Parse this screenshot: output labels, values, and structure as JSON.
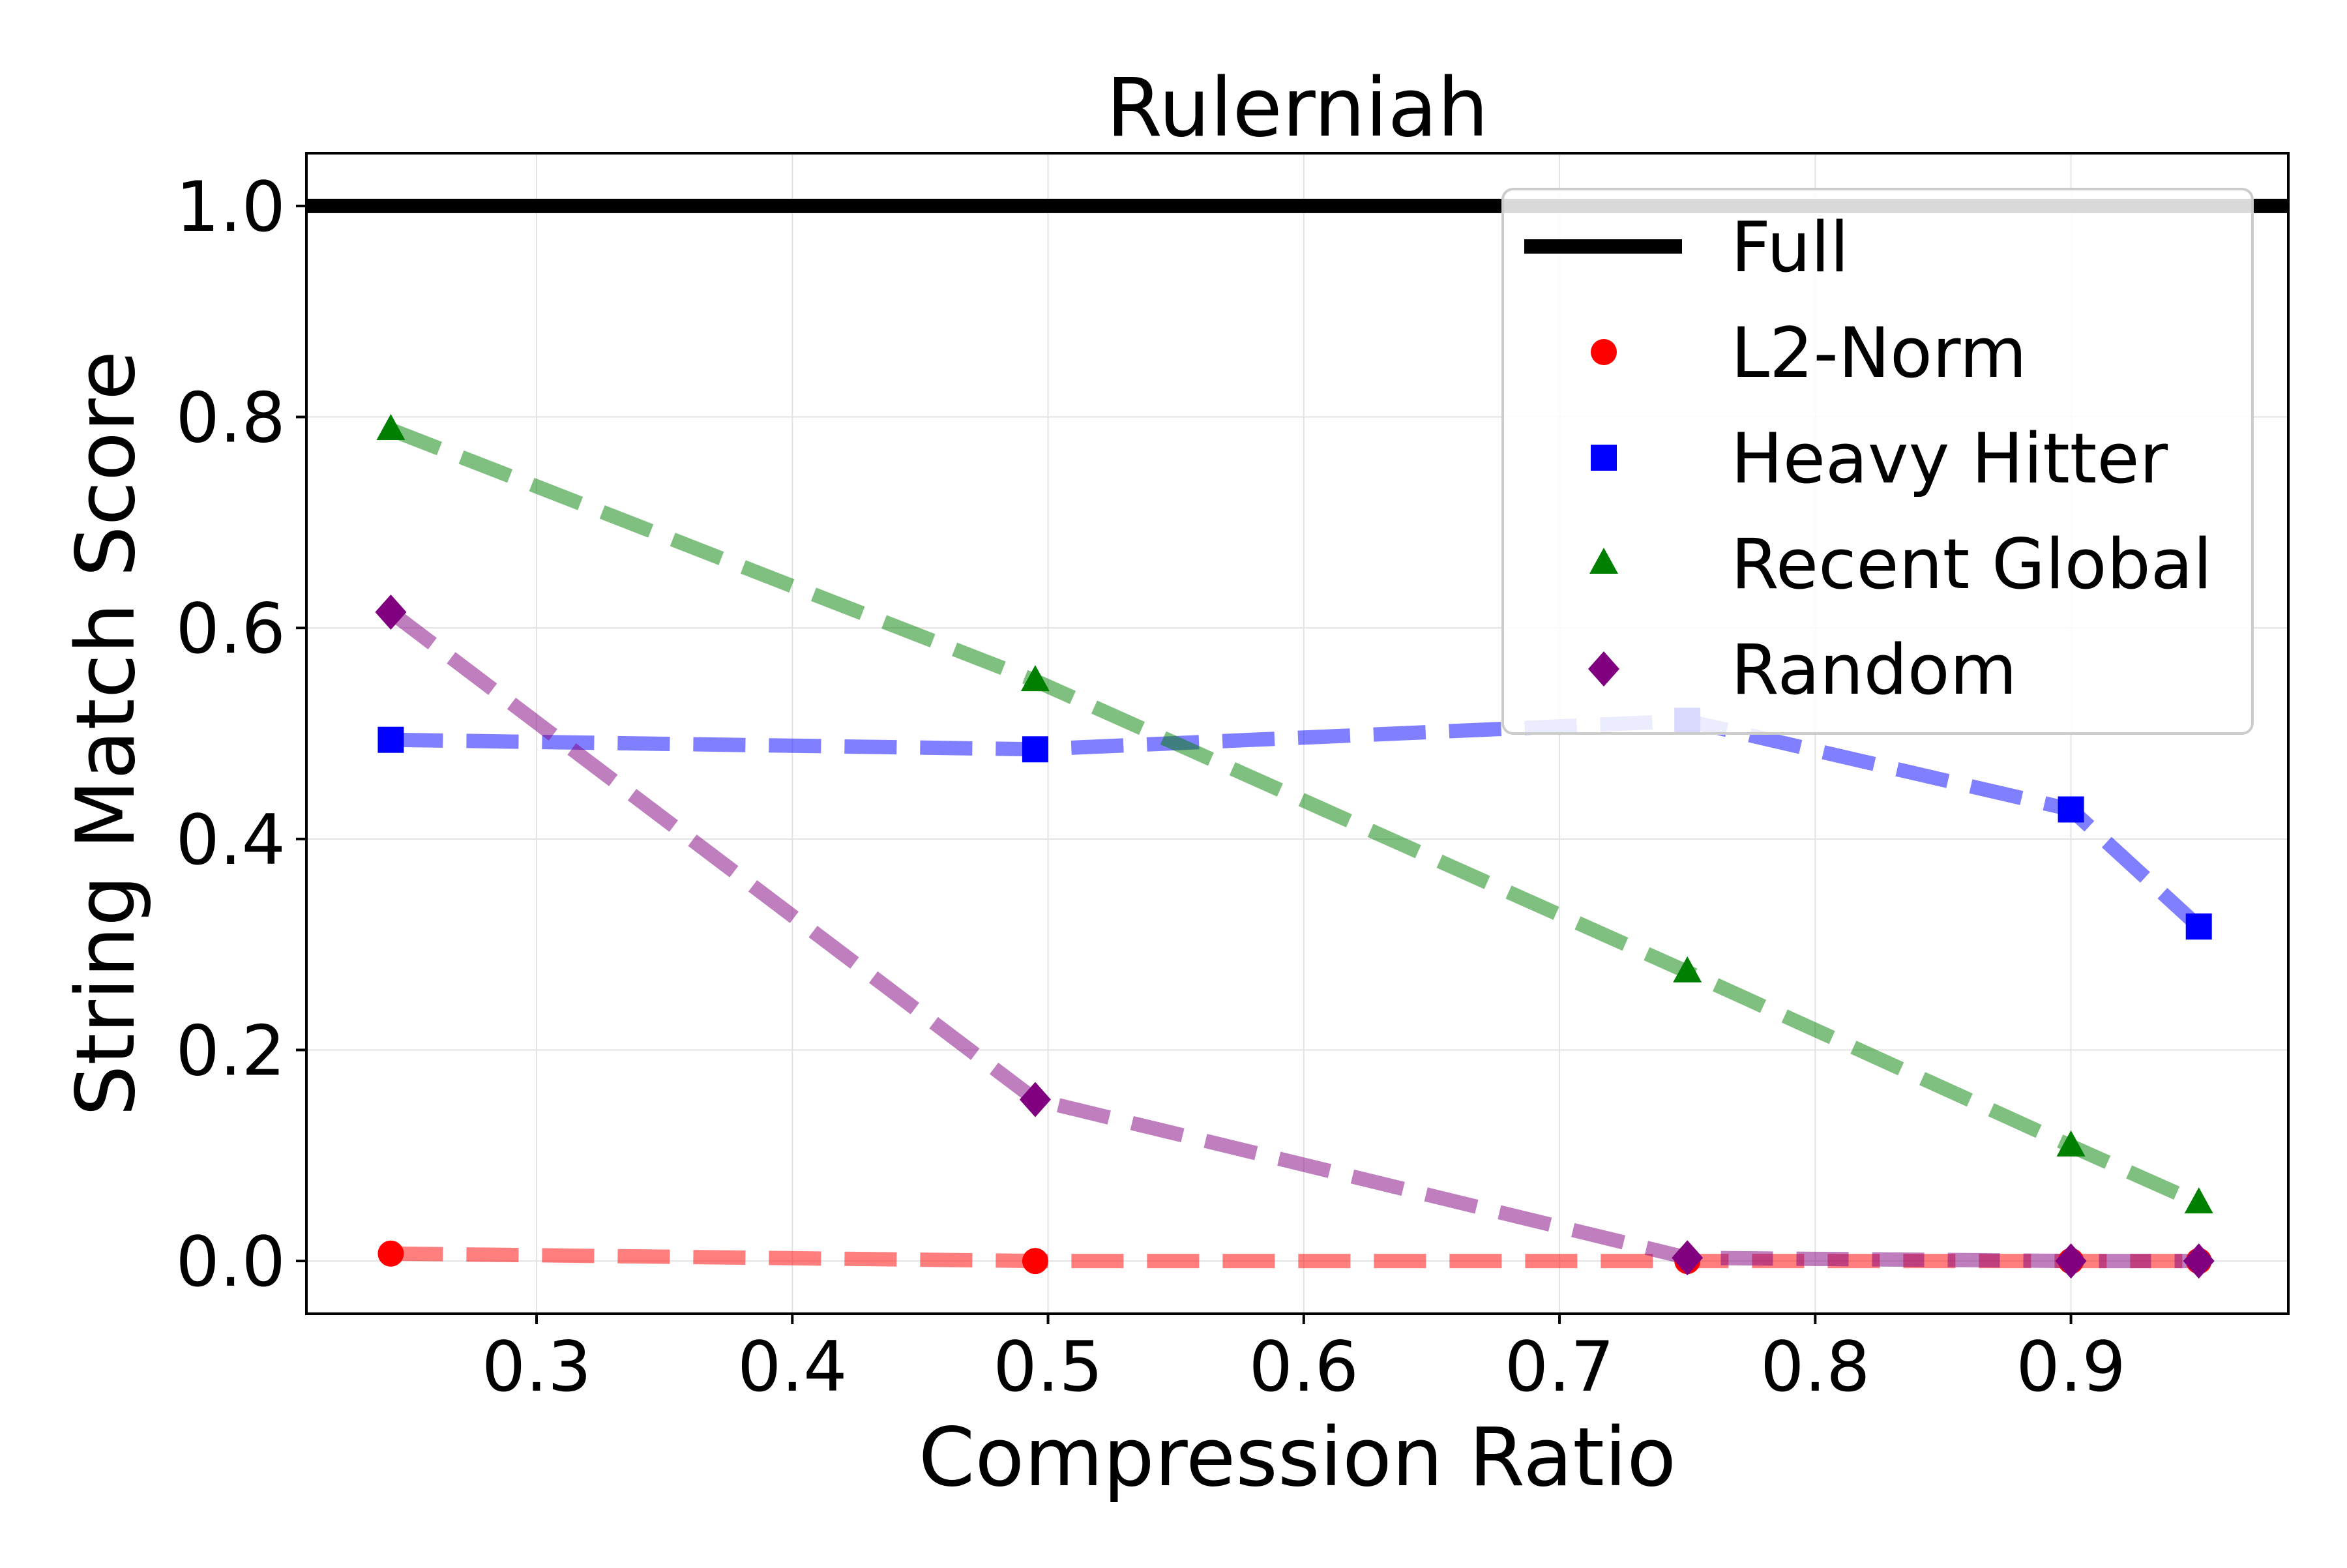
{
  "chart_data": {
    "type": "line",
    "title": "Rulerniah",
    "xlabel": "Compression Ratio",
    "ylabel": "String Match Score",
    "xlim": [
      0.21,
      0.985
    ],
    "ylim": [
      -0.05,
      1.05
    ],
    "xticks": [
      "0.3",
      "0.4",
      "0.5",
      "0.6",
      "0.7",
      "0.8",
      "0.9"
    ],
    "yticks": [
      "0.0",
      "0.2",
      "0.4",
      "0.6",
      "0.8",
      "1.0"
    ],
    "grid": true,
    "legend_position": "top-right",
    "full_baseline": {
      "name": "Full",
      "y": 1.0,
      "color": "#000000"
    },
    "series": [
      {
        "name": "L2-Norm",
        "color": "#ff0000",
        "marker": "circle",
        "x": [
          0.243,
          0.495,
          0.75,
          0.9,
          0.95
        ],
        "y": [
          0.007,
          0.0,
          0.0,
          0.0,
          0.0
        ]
      },
      {
        "name": "Heavy Hitter",
        "color": "#0000ff",
        "marker": "square",
        "x": [
          0.243,
          0.495,
          0.75,
          0.9,
          0.95
        ],
        "y": [
          0.494,
          0.485,
          0.512,
          0.428,
          0.317
        ]
      },
      {
        "name": "Recent Global",
        "color": "#008000",
        "marker": "triangle",
        "x": [
          0.243,
          0.495,
          0.75,
          0.9,
          0.95
        ],
        "y": [
          0.788,
          0.55,
          0.274,
          0.109,
          0.055
        ]
      },
      {
        "name": "Random",
        "color": "#800080",
        "marker": "diamond",
        "x": [
          0.243,
          0.495,
          0.75,
          0.9,
          0.95
        ],
        "y": [
          0.615,
          0.153,
          0.003,
          0.0,
          0.0
        ]
      }
    ]
  }
}
